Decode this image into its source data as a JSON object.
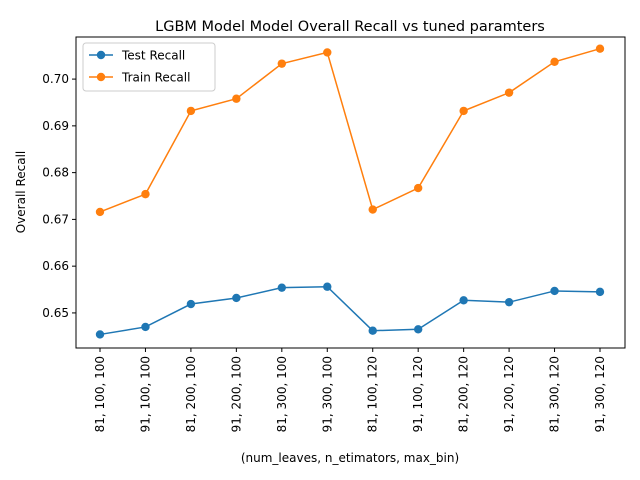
{
  "chart_data": {
    "type": "line",
    "title": "LGBM Model Model Overall Recall vs tuned paramters",
    "xlabel": "(num_leaves, n_etimators, max_bin)",
    "ylabel": "Overall Recall",
    "categories": [
      "81, 100, 100",
      "91, 100, 100",
      "81, 200, 100",
      "91, 200, 100",
      "81, 300, 100",
      "91, 300, 100",
      "81, 100, 120",
      "91, 100, 120",
      "81, 200, 120",
      "91, 200, 120",
      "81, 300, 120",
      "91, 300, 120"
    ],
    "yticks": [
      "0.65",
      "0.66",
      "0.67",
      "0.68",
      "0.69",
      "0.70"
    ],
    "ylim": [
      0.6425,
      0.709
    ],
    "grid": false,
    "legend_position": "upper left",
    "series": [
      {
        "name": "Test Recall",
        "color": "#1f77b4",
        "values": [
          0.6454,
          0.647,
          0.6519,
          0.6532,
          0.6554,
          0.6556,
          0.6462,
          0.6465,
          0.6527,
          0.6523,
          0.6547,
          0.6545
        ]
      },
      {
        "name": "Train Recall",
        "color": "#ff7f0e",
        "values": [
          0.6716,
          0.6754,
          0.6932,
          0.6958,
          0.7033,
          0.7057,
          0.6721,
          0.6767,
          0.6932,
          0.6971,
          0.7037,
          0.7065
        ]
      }
    ]
  }
}
